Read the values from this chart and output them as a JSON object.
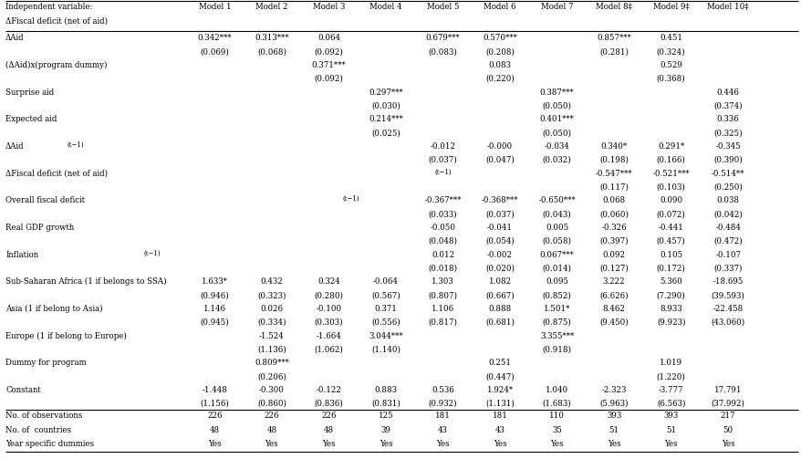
{
  "header_row1": [
    "Independent variable:",
    "Model 1",
    "Model 2",
    "Model 3",
    "Model 4",
    "Model 5",
    "Model 6",
    "Model 7",
    "Model 8‡",
    "Model 9‡",
    "Model 10‡"
  ],
  "header_row2": [
    "ΔFiscal deficit (net of aid)",
    "",
    "",
    "",
    "",
    "",
    "",
    "",
    "",
    "",
    ""
  ],
  "rows": [
    [
      "ΔAid",
      "0.342***\n(0.069)",
      "0.313***\n(0.068)",
      "0.064\n(0.092)",
      "",
      "0.679***\n(0.083)",
      "0.570***\n(0.208)",
      "",
      "0.857***\n(0.281)",
      "0.451\n(0.324)",
      ""
    ],
    [
      "(ΔAid)x(program dummy)",
      "",
      "",
      "0.371***\n(0.092)",
      "",
      "",
      "0.083\n(0.220)",
      "",
      "",
      "0.529\n(0.368)",
      ""
    ],
    [
      "Surprise aid",
      "",
      "",
      "",
      "0.297***\n(0.030)",
      "",
      "",
      "0.387***\n(0.050)",
      "",
      "",
      "0.446\n(0.374)"
    ],
    [
      "Expected aid",
      "",
      "",
      "",
      "0.214***\n(0.025)",
      "",
      "",
      "0.401***\n(0.050)",
      "",
      "",
      "0.336\n(0.325)"
    ],
    [
      "ΔAid(t−1)",
      "",
      "",
      "",
      "",
      "-0.012\n(0.037)",
      "-0.000\n(0.047)",
      "-0.034\n(0.032)",
      "0.340*\n(0.198)",
      "0.291*\n(0.166)",
      "-0.345\n(0.390)"
    ],
    [
      "ΔFiscal deficit (net of aid)(t−1)",
      "",
      "",
      "",
      "",
      "",
      "",
      "",
      "-0.547***\n(0.117)",
      "-0.521***\n(0.103)",
      "-0.514**\n(0.250)"
    ],
    [
      "Overall fiscal deficit(t−1)",
      "",
      "",
      "",
      "",
      "-0.367***\n(0.033)",
      "-0.368***\n(0.037)",
      "-0.650***\n(0.043)",
      "0.068\n(0.060)",
      "0.090\n(0.072)",
      "0.038\n(0.042)"
    ],
    [
      "Real GDP growth",
      "",
      "",
      "",
      "",
      "-0.050\n(0.048)",
      "-0.041\n(0.054)",
      "0.005\n(0.058)",
      "-0.326\n(0.397)",
      "-0.441\n(0.457)",
      "-0.484\n(0.472)"
    ],
    [
      "Inflation(t−1)",
      "",
      "",
      "",
      "",
      "0.012\n(0.018)",
      "-0.002\n(0.020)",
      "0.067***\n(0.014)",
      "0.092\n(0.127)",
      "0.105\n(0.172)",
      "-0.107\n(0.337)"
    ],
    [
      "Sub-Saharan Africa (1 if belongs to SSA)",
      "1.633*\n(0.946)",
      "0.432\n(0.323)",
      "0.324\n(0.280)",
      "-0.064\n(0.567)",
      "1.303\n(0.807)",
      "1.082\n(0.667)",
      "0.095\n(0.852)",
      "3.222\n(6.626)",
      "5.360\n(7.290)",
      "-18.695\n(39.593)"
    ],
    [
      "Asia (1 if belong to Asia)",
      "1.146\n(0.945)",
      "0.026\n(0.334)",
      "-0.100\n(0.303)",
      "0.371\n(0.556)",
      "1.106\n(0.817)",
      "0.888\n(0.681)",
      "1.501*\n(0.875)",
      "8.462\n(9.450)",
      "8.933\n(9.923)",
      "-22.458\n(43.060)"
    ],
    [
      "Europe (1 if belong to Europe)",
      "",
      "-1.524\n(1.136)",
      "-1.664\n(1.062)",
      "3.044***\n(1.140)",
      "",
      "",
      "3.355***\n(0.918)",
      "",
      "",
      ""
    ],
    [
      "Dummy for program",
      "",
      "0.809***\n(0.206)",
      "",
      "",
      "",
      "0.251\n(0.447)",
      "",
      "",
      "1.019\n(1.220)",
      ""
    ],
    [
      "Constant",
      "-1.448\n(1.156)",
      "-0.300\n(0.860)",
      "-0.122\n(0.836)",
      "0.883\n(0.831)",
      "0.536\n(0.932)",
      "1.924*\n(1.131)",
      "1.040\n(1.683)",
      "-2.323\n(5.963)",
      "-3.777\n(6.563)",
      "17.791\n(37.992)"
    ]
  ],
  "footer_rows": [
    [
      "No. of observations",
      "226",
      "226",
      "226",
      "125",
      "181",
      "181",
      "110",
      "393",
      "393",
      "217"
    ],
    [
      "No. of  countries",
      "48",
      "48",
      "48",
      "39",
      "43",
      "43",
      "35",
      "51",
      "51",
      "50"
    ],
    [
      "Year specific dummies",
      "Yes",
      "Yes",
      "Yes",
      "Yes",
      "Yes",
      "Yes",
      "Yes",
      "Yes",
      "Yes",
      "Yes"
    ]
  ],
  "row_label_subscripts": [
    [
      "",
      ""
    ],
    [
      "",
      ""
    ],
    [
      "",
      ""
    ],
    [
      "",
      ""
    ],
    [
      "ΔAid",
      "(t−1)"
    ],
    [
      "ΔFiscal deficit (net of aid)",
      "(t−1)"
    ],
    [
      "Overall fiscal deficit",
      "(t−1)"
    ],
    [
      "",
      ""
    ],
    [
      "Inflation",
      "(t−1)"
    ]
  ],
  "background_color": "#ffffff",
  "text_color": "#000000",
  "font_size": 6.2
}
